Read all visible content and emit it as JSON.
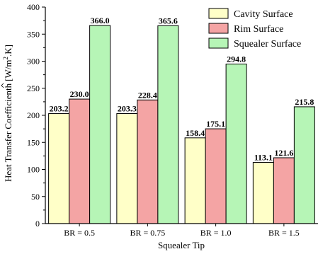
{
  "chart_data": {
    "type": "bar",
    "title": "",
    "xlabel": "Squealer Tip",
    "ylabel_main": "Heat Transfer Coefficient",
    "ylabel_symbol": "h",
    "ylabel_units": "[W/m",
    "ylabel_exp": "2",
    "ylabel_units_end": ".K]",
    "categories": [
      "BR = 0.5",
      "BR = 0.75",
      "BR = 1.0",
      "BR = 1.5"
    ],
    "series": [
      {
        "name": "Cavity Surface",
        "color": "#FFFFC8",
        "values": [
          203.2,
          203.3,
          158.4,
          113.1
        ],
        "labels": [
          "203.2",
          "203.3",
          "158.4",
          "113.1"
        ]
      },
      {
        "name": "Rim Surface",
        "color": "#F4A4A4",
        "values": [
          230.0,
          228.4,
          175.1,
          121.6
        ],
        "labels": [
          "230.0",
          "228.4",
          "175.1",
          "121.6"
        ]
      },
      {
        "name": "Squealer Surface",
        "color": "#B6F5B6",
        "values": [
          366.0,
          365.6,
          294.8,
          215.8
        ],
        "labels": [
          "366.0",
          "365.6",
          "294.8",
          "215.8"
        ]
      }
    ],
    "ylim": [
      0,
      400
    ],
    "yticks": [
      0,
      50,
      100,
      150,
      200,
      250,
      300,
      350,
      400
    ],
    "legend_position": "top-right",
    "grid": false
  }
}
